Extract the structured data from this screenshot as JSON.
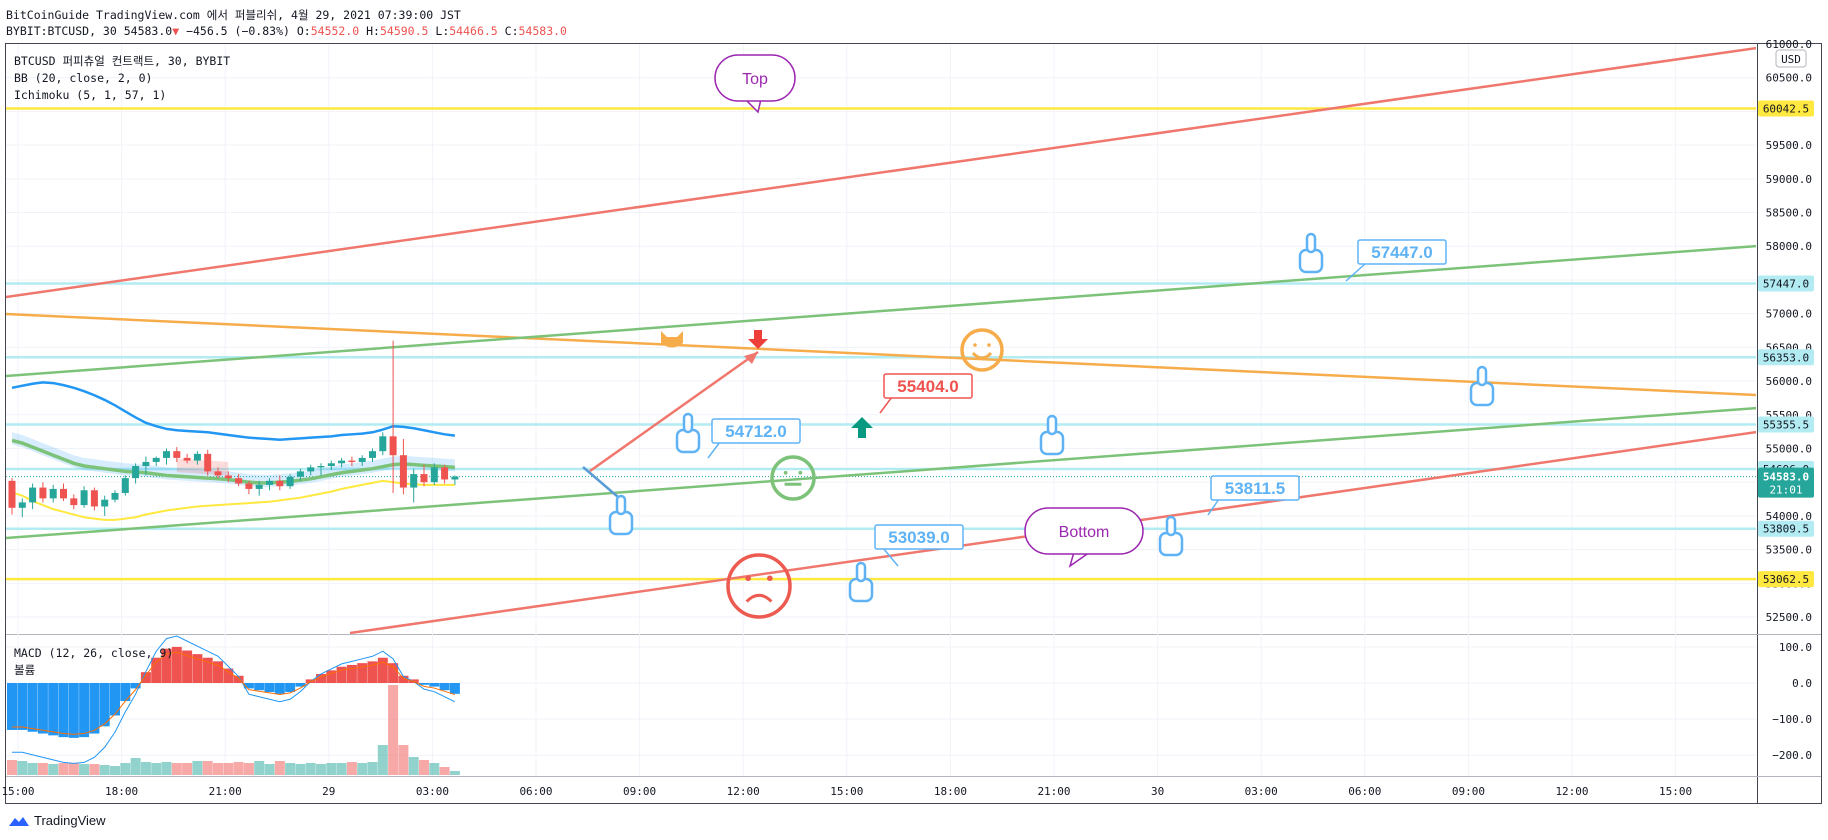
{
  "header": {
    "publisher_line": "BitCoinGuide TradingView.com 에서 퍼블리쉬, 4월 29, 2021 07:39:00 JST",
    "symbol": "BYBIT:BTCUSD, 30",
    "last_price": "54583.0",
    "change_arrow": "▼",
    "change": "−456.5 (−0.83%)",
    "open_label": "O:",
    "open": "54552.0",
    "high_label": "H:",
    "high": "54590.5",
    "low_label": "L:",
    "low": "54466.5",
    "close_label": "C:",
    "close": "54583.0"
  },
  "legend": {
    "instrument": "BTCUSD 퍼피츄얼 컨트랙트, 30, BYBIT",
    "bb": "BB (20, close, 2, 0)",
    "ichimoku": "Ichimoku (5, 1, 57, 1)",
    "macd": "MACD (12, 26, close, 9)",
    "volume": "볼륨"
  },
  "currency": "USD",
  "footer": {
    "brand": "TradingView"
  },
  "colors": {
    "up": "#26a69a",
    "down": "#ef5350",
    "red_line": "#f0776d",
    "green_line": "#7cc379",
    "orange_line": "#f7ac4b",
    "yellow_line": "#ffe83f",
    "hline_cyan": "#b2ebf2",
    "bb_blue": "#2196f3",
    "callout_blue": "#5fb3f5"
  },
  "chart_data": {
    "type": "candlestick",
    "y_axis_ticks": [
      "61000.0",
      "60500.0",
      "60000.0",
      "59500.0",
      "59000.0",
      "58500.0",
      "58000.0",
      "57500.0",
      "57000.0",
      "56500.0",
      "56000.0",
      "55500.0",
      "55000.0",
      "54500.0",
      "54000.0",
      "53500.0",
      "53000.0",
      "52500.0"
    ],
    "x_axis_ticks": [
      "15:00",
      "18:00",
      "21:00",
      "29",
      "03:00",
      "06:00",
      "09:00",
      "12:00",
      "15:00",
      "18:00",
      "21:00",
      "30",
      "03:00",
      "06:00",
      "09:00",
      "12:00",
      "15:00"
    ],
    "macd_axis_ticks": [
      "100.0",
      "0.0",
      "−100.0",
      "−200.0"
    ],
    "price_labels": [
      {
        "value": "60042.5",
        "color": "#ffe83f"
      },
      {
        "value": "57447.0",
        "color": "#b2ebf2"
      },
      {
        "value": "56353.0",
        "color": "#b2ebf2"
      },
      {
        "value": "55355.5",
        "color": "#b2ebf2"
      },
      {
        "value": "54696.0",
        "color": "#b2ebf2"
      },
      {
        "value": "54583.0",
        "sub": "21:01",
        "color": "#26a69a"
      },
      {
        "value": "53809.5",
        "color": "#b2ebf2"
      },
      {
        "value": "53062.5",
        "color": "#ffe83f"
      }
    ],
    "callouts": [
      "57447.0",
      "55404.0",
      "54712.0",
      "53811.5",
      "53039.0"
    ],
    "bubbles": [
      "Top",
      "Bottom"
    ],
    "candles": [
      {
        "o": 54520,
        "h": 54560,
        "l": 54020,
        "c": 54120
      },
      {
        "o": 54120,
        "h": 54260,
        "l": 53980,
        "c": 54200
      },
      {
        "o": 54200,
        "h": 54480,
        "l": 54100,
        "c": 54420
      },
      {
        "o": 54420,
        "h": 54500,
        "l": 54200,
        "c": 54260
      },
      {
        "o": 54260,
        "h": 54460,
        "l": 54200,
        "c": 54400
      },
      {
        "o": 54400,
        "h": 54480,
        "l": 54220,
        "c": 54260
      },
      {
        "o": 54260,
        "h": 54320,
        "l": 54100,
        "c": 54160
      },
      {
        "o": 54160,
        "h": 54440,
        "l": 54120,
        "c": 54380
      },
      {
        "o": 54380,
        "h": 54420,
        "l": 54080,
        "c": 54140
      },
      {
        "o": 54140,
        "h": 54300,
        "l": 54000,
        "c": 54240
      },
      {
        "o": 54240,
        "h": 54380,
        "l": 54200,
        "c": 54340
      },
      {
        "o": 54340,
        "h": 54600,
        "l": 54300,
        "c": 54560
      },
      {
        "o": 54560,
        "h": 54780,
        "l": 54480,
        "c": 54740
      },
      {
        "o": 54740,
        "h": 54880,
        "l": 54600,
        "c": 54800
      },
      {
        "o": 54800,
        "h": 54880,
        "l": 54740,
        "c": 54860
      },
      {
        "o": 54860,
        "h": 55000,
        "l": 54760,
        "c": 54960
      },
      {
        "o": 54960,
        "h": 55020,
        "l": 54800,
        "c": 54860
      },
      {
        "o": 54860,
        "h": 54920,
        "l": 54780,
        "c": 54820
      },
      {
        "o": 54820,
        "h": 54960,
        "l": 54760,
        "c": 54920
      },
      {
        "o": 54920,
        "h": 54980,
        "l": 54600,
        "c": 54660
      },
      {
        "o": 54660,
        "h": 54720,
        "l": 54560,
        "c": 54600
      },
      {
        "o": 54600,
        "h": 54660,
        "l": 54500,
        "c": 54560
      },
      {
        "o": 54560,
        "h": 54620,
        "l": 54440,
        "c": 54480
      },
      {
        "o": 54480,
        "h": 54520,
        "l": 54320,
        "c": 54400
      },
      {
        "o": 54400,
        "h": 54520,
        "l": 54300,
        "c": 54460
      },
      {
        "o": 54460,
        "h": 54560,
        "l": 54380,
        "c": 54520
      },
      {
        "o": 54520,
        "h": 54600,
        "l": 54380,
        "c": 54440
      },
      {
        "o": 54440,
        "h": 54620,
        "l": 54400,
        "c": 54580
      },
      {
        "o": 54580,
        "h": 54700,
        "l": 54520,
        "c": 54660
      },
      {
        "o": 54660,
        "h": 54760,
        "l": 54600,
        "c": 54720
      },
      {
        "o": 54720,
        "h": 54780,
        "l": 54600,
        "c": 54740
      },
      {
        "o": 54740,
        "h": 54820,
        "l": 54680,
        "c": 54780
      },
      {
        "o": 54780,
        "h": 54860,
        "l": 54720,
        "c": 54820
      },
      {
        "o": 54820,
        "h": 54880,
        "l": 54740,
        "c": 54800
      },
      {
        "o": 54800,
        "h": 54900,
        "l": 54740,
        "c": 54860
      },
      {
        "o": 54860,
        "h": 55000,
        "l": 54800,
        "c": 54960
      },
      {
        "o": 54960,
        "h": 55240,
        "l": 54900,
        "c": 55180
      },
      {
        "o": 55180,
        "h": 56600,
        "l": 54340,
        "c": 54900
      },
      {
        "o": 54900,
        "h": 55140,
        "l": 54320,
        "c": 54420
      },
      {
        "o": 54420,
        "h": 54700,
        "l": 54200,
        "c": 54620
      },
      {
        "o": 54620,
        "h": 54760,
        "l": 54440,
        "c": 54500
      },
      {
        "o": 54500,
        "h": 54780,
        "l": 54460,
        "c": 54720
      },
      {
        "o": 54720,
        "h": 54760,
        "l": 54480,
        "c": 54540
      },
      {
        "o": 54540,
        "h": 54600,
        "l": 54460,
        "c": 54583
      }
    ],
    "bb_upper": [
      55900,
      55930,
      55960,
      55980,
      55970,
      55940,
      55900,
      55850,
      55790,
      55720,
      55640,
      55550,
      55460,
      55380,
      55330,
      55290,
      55270,
      55260,
      55250,
      55240,
      55220,
      55200,
      55180,
      55160,
      55150,
      55140,
      55130,
      55140,
      55150,
      55160,
      55170,
      55180,
      55200,
      55210,
      55220,
      55240,
      55280,
      55330,
      55320,
      55300,
      55270,
      55240,
      55210,
      55190
    ],
    "bb_lower": [
      54350,
      54300,
      54220,
      54160,
      54100,
      54060,
      54020,
      53980,
      53960,
      53940,
      53940,
      53960,
      53980,
      54020,
      54050,
      54080,
      54100,
      54120,
      54140,
      54150,
      54160,
      54170,
      54180,
      54190,
      54200,
      54210,
      54230,
      54250,
      54270,
      54300,
      54330,
      54360,
      54400,
      54430,
      54460,
      54490,
      54520,
      54500,
      54480,
      54470,
      54460,
      54460,
      54460,
      54460
    ],
    "bb_basis": [
      55120,
      55080,
      55020,
      54960,
      54900,
      54840,
      54780,
      54740,
      54720,
      54700,
      54680,
      54660,
      54650,
      54640,
      54620,
      54600,
      54590,
      54580,
      54570,
      54560,
      54550,
      54540,
      54520,
      54500,
      54490,
      54490,
      54500,
      54510,
      54530,
      54550,
      54580,
      54610,
      54640,
      54660,
      54680,
      54700,
      54730,
      54760,
      54770,
      54760,
      54750,
      54740,
      54730,
      54720
    ],
    "macd_hist": [
      -130,
      -130,
      -135,
      -140,
      -145,
      -150,
      -152,
      -150,
      -140,
      -120,
      -90,
      -50,
      -15,
      30,
      70,
      95,
      100,
      90,
      80,
      70,
      60,
      40,
      20,
      -15,
      -20,
      -25,
      -30,
      -25,
      -10,
      10,
      25,
      35,
      45,
      50,
      55,
      60,
      70,
      55,
      20,
      10,
      -5,
      -10,
      -20,
      -30
    ],
    "volume": [
      15,
      14,
      12,
      12,
      11,
      12,
      12,
      11,
      11,
      10,
      9,
      12,
      17,
      13,
      12,
      13,
      12,
      12,
      14,
      14,
      12,
      12,
      13,
      12,
      14,
      11,
      14,
      12,
      11,
      12,
      11,
      12,
      12,
      13,
      12,
      13,
      30,
      90,
      30,
      18,
      15,
      12,
      8,
      4
    ]
  }
}
